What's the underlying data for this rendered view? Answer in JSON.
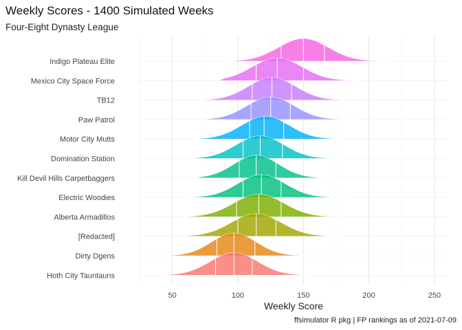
{
  "chart_data": {
    "type": "ridgeline",
    "title": "Weekly Scores - 1400 Simulated Weeks",
    "subtitle": "Four-Eight Dynasty League",
    "xlabel": "Weekly Score",
    "ylabel": "",
    "caption": "ffsimulator R pkg | FP rankings as of 2021-07-09",
    "xlim": [
      25,
      260
    ],
    "x_ticks": [
      50,
      100,
      150,
      200,
      250
    ],
    "grid": true,
    "legend": "none",
    "series": [
      {
        "name": "Indigo Plateau Elite",
        "color": "#F564E3",
        "min": 94,
        "max": 216,
        "mean": 150,
        "sd": 19,
        "quantiles": [
          133,
          150,
          166
        ]
      },
      {
        "name": "Mexico City Space Force",
        "color": "#E76BF3",
        "min": 85,
        "max": 195,
        "mean": 130,
        "sd": 19,
        "quantiles": [
          114,
          130,
          150
        ]
      },
      {
        "name": "TB12",
        "color": "#C77CFF",
        "min": 72,
        "max": 182,
        "mean": 126,
        "sd": 18,
        "quantiles": [
          111,
          126,
          141
        ]
      },
      {
        "name": "Paw Patrol",
        "color": "#9590FF",
        "min": 72,
        "max": 193,
        "mean": 125,
        "sd": 18,
        "quantiles": [
          110,
          125,
          140
        ]
      },
      {
        "name": "Motor City Mutts",
        "color": "#00B0F6",
        "min": 65,
        "max": 182,
        "mean": 121,
        "sd": 18,
        "quantiles": [
          109,
          120,
          135
        ]
      },
      {
        "name": "Domination Station",
        "color": "#00BFC4",
        "min": 64,
        "max": 180,
        "mean": 117,
        "sd": 18,
        "quantiles": [
          104,
          117,
          134
        ]
      },
      {
        "name": "Kill Devil Hills Carpetbaggers",
        "color": "#00C08B",
        "min": 67,
        "max": 175,
        "mean": 114,
        "sd": 17,
        "quantiles": [
          101,
          114,
          129
        ]
      },
      {
        "name": "Electric Woodies",
        "color": "#00BF7D",
        "min": 61,
        "max": 185,
        "mean": 118,
        "sd": 18,
        "quantiles": [
          104,
          118,
          133
        ]
      },
      {
        "name": "Alberta Armadillos",
        "color": "#7CAE00",
        "min": 58,
        "max": 178,
        "mean": 116,
        "sd": 19,
        "quantiles": [
          99,
          116,
          133
        ]
      },
      {
        "name": "[Redacted]",
        "color": "#A3A500",
        "min": 57,
        "max": 178,
        "mean": 114,
        "sd": 19,
        "quantiles": [
          100,
          114,
          129
        ]
      },
      {
        "name": "Dirty Dgens",
        "color": "#E68613",
        "min": 46,
        "max": 155,
        "mean": 97,
        "sd": 17,
        "quantiles": [
          84,
          97,
          113
        ]
      },
      {
        "name": "Hoth City Tauntauns",
        "color": "#F8766D",
        "min": 42,
        "max": 158,
        "mean": 97,
        "sd": 18,
        "quantiles": [
          83,
          97,
          111
        ]
      }
    ]
  }
}
